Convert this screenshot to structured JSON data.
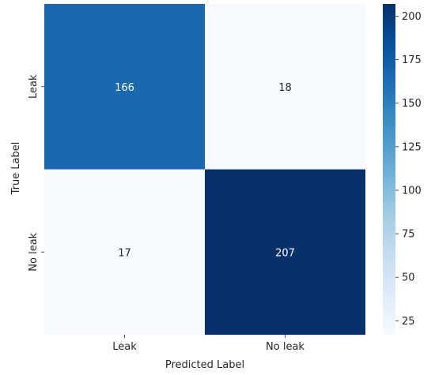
{
  "chart_data": {
    "type": "heatmap",
    "title": "",
    "xlabel": "Predicted Label",
    "ylabel": "True Label",
    "x_categories": [
      "Leak",
      "No leak"
    ],
    "y_categories": [
      "Leak",
      "No leak"
    ],
    "values": [
      [
        166,
        18
      ],
      [
        17,
        207
      ]
    ],
    "colormap": "Blues",
    "colorbar": {
      "min": 17,
      "max": 207,
      "ticks": [
        25,
        50,
        75,
        100,
        125,
        150,
        175,
        200
      ],
      "tick_labels": [
        "25",
        "50",
        "75",
        "100",
        "125",
        "150",
        "175",
        "200"
      ]
    },
    "annotation_colors": {
      "light_cell": "#262626",
      "dark_cell": "#ffffff"
    }
  }
}
